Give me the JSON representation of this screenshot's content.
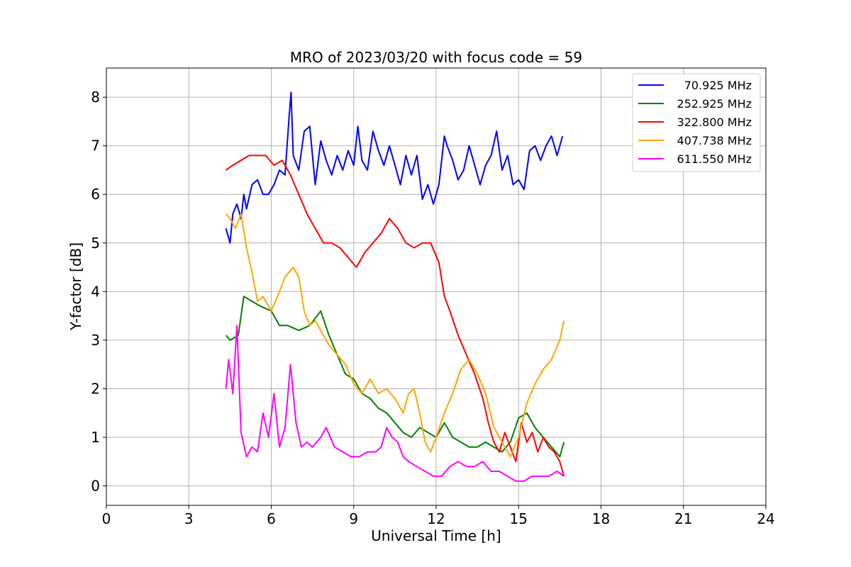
{
  "chart_data": {
    "type": "line",
    "title": "MRO of 2023/03/20 with focus code = 59",
    "xlabel": "Universal Time [h]",
    "ylabel": "Y-factor [dB]",
    "xlim": [
      0,
      24
    ],
    "ylim": [
      -0.4,
      8.6
    ],
    "xticks": [
      0,
      3,
      6,
      9,
      12,
      15,
      18,
      21,
      24
    ],
    "yticks": [
      0,
      1,
      2,
      3,
      4,
      5,
      6,
      7,
      8
    ],
    "grid": true,
    "legend_position": "top-right",
    "series": [
      {
        "name": "70.925 MHz",
        "color": "#0000ff",
        "x": [
          4.35,
          4.5,
          4.6,
          4.75,
          4.9,
          5.0,
          5.1,
          5.3,
          5.5,
          5.7,
          5.9,
          6.1,
          6.3,
          6.5,
          6.65,
          6.72,
          6.8,
          7.0,
          7.2,
          7.4,
          7.6,
          7.8,
          8.0,
          8.2,
          8.4,
          8.6,
          8.8,
          9.0,
          9.15,
          9.3,
          9.5,
          9.7,
          9.9,
          10.1,
          10.3,
          10.5,
          10.7,
          10.9,
          11.1,
          11.3,
          11.5,
          11.7,
          11.9,
          12.1,
          12.3,
          12.4,
          12.6,
          12.8,
          13.0,
          13.2,
          13.4,
          13.6,
          13.8,
          14.0,
          14.2,
          14.4,
          14.6,
          14.8,
          15.0,
          15.2,
          15.4,
          15.6,
          15.8,
          16.0,
          16.2,
          16.4,
          16.6
        ],
        "y": [
          5.3,
          5.0,
          5.6,
          5.8,
          5.5,
          6.0,
          5.7,
          6.2,
          6.3,
          6.0,
          6.0,
          6.2,
          6.5,
          6.4,
          7.6,
          8.1,
          6.8,
          6.5,
          7.3,
          7.4,
          6.2,
          7.1,
          6.7,
          6.4,
          6.8,
          6.5,
          6.9,
          6.6,
          7.4,
          6.7,
          6.5,
          7.3,
          6.9,
          6.6,
          7.0,
          6.6,
          6.2,
          6.8,
          6.4,
          6.8,
          5.9,
          6.2,
          5.8,
          6.2,
          7.2,
          7.0,
          6.7,
          6.3,
          6.5,
          7.0,
          6.6,
          6.2,
          6.6,
          6.8,
          7.3,
          6.5,
          6.8,
          6.2,
          6.3,
          6.1,
          6.9,
          7.0,
          6.7,
          7.0,
          7.2,
          6.8,
          7.2
        ]
      },
      {
        "name": "252.925 MHz",
        "color": "#008000",
        "x": [
          4.35,
          4.5,
          4.8,
          5.0,
          5.3,
          5.6,
          6.0,
          6.3,
          6.6,
          7.0,
          7.4,
          7.8,
          8.1,
          8.4,
          8.7,
          9.0,
          9.3,
          9.6,
          9.9,
          10.2,
          10.5,
          10.8,
          11.1,
          11.4,
          11.7,
          12.0,
          12.3,
          12.6,
          12.9,
          13.2,
          13.5,
          13.8,
          14.1,
          14.4,
          14.7,
          15.0,
          15.3,
          15.6,
          15.9,
          16.2,
          16.5,
          16.65
        ],
        "y": [
          3.1,
          3.0,
          3.1,
          3.9,
          3.8,
          3.7,
          3.6,
          3.3,
          3.3,
          3.2,
          3.3,
          3.6,
          3.1,
          2.7,
          2.3,
          2.2,
          1.9,
          1.8,
          1.6,
          1.5,
          1.3,
          1.1,
          1.0,
          1.2,
          1.1,
          1.0,
          1.3,
          1.0,
          0.9,
          0.8,
          0.8,
          0.9,
          0.8,
          0.7,
          0.9,
          1.4,
          1.5,
          1.2,
          1.0,
          0.8,
          0.6,
          0.9
        ]
      },
      {
        "name": "322.800 MHz",
        "color": "#ff0000",
        "x": [
          4.35,
          4.6,
          4.9,
          5.2,
          5.5,
          5.8,
          6.1,
          6.4,
          6.7,
          7.0,
          7.3,
          7.6,
          7.9,
          8.2,
          8.5,
          8.8,
          9.1,
          9.4,
          9.7,
          10.0,
          10.3,
          10.6,
          10.9,
          11.2,
          11.5,
          11.8,
          12.1,
          12.3,
          12.5,
          12.8,
          13.1,
          13.4,
          13.7,
          13.9,
          14.1,
          14.3,
          14.5,
          14.7,
          14.9,
          15.1,
          15.3,
          15.5,
          15.7,
          15.9,
          16.1,
          16.3,
          16.5,
          16.65
        ],
        "y": [
          6.5,
          6.6,
          6.7,
          6.8,
          6.8,
          6.8,
          6.6,
          6.7,
          6.4,
          6.0,
          5.6,
          5.3,
          5.0,
          5.0,
          4.9,
          4.7,
          4.5,
          4.8,
          5.0,
          5.2,
          5.5,
          5.3,
          5.0,
          4.9,
          5.0,
          5.0,
          4.6,
          3.9,
          3.6,
          3.1,
          2.7,
          2.3,
          1.8,
          1.3,
          0.9,
          0.7,
          1.1,
          0.8,
          0.5,
          1.3,
          0.9,
          1.1,
          0.7,
          1.0,
          0.8,
          0.7,
          0.5,
          0.2
        ]
      },
      {
        "name": "407.738 MHz",
        "color": "#ffa500",
        "x": [
          4.35,
          4.5,
          4.7,
          4.9,
          5.1,
          5.3,
          5.5,
          5.7,
          6.0,
          6.3,
          6.5,
          6.8,
          7.0,
          7.2,
          7.4,
          7.6,
          7.8,
          8.1,
          8.4,
          8.7,
          9.0,
          9.3,
          9.6,
          9.9,
          10.2,
          10.5,
          10.8,
          11.0,
          11.2,
          11.4,
          11.6,
          11.8,
          12.0,
          12.3,
          12.6,
          12.9,
          13.2,
          13.5,
          13.8,
          14.1,
          14.4,
          14.7,
          15.0,
          15.3,
          15.6,
          15.9,
          16.2,
          16.5,
          16.65
        ],
        "y": [
          5.6,
          5.5,
          5.3,
          5.6,
          4.9,
          4.4,
          3.8,
          3.9,
          3.6,
          4.0,
          4.3,
          4.5,
          4.3,
          3.6,
          3.3,
          3.4,
          3.2,
          2.9,
          2.7,
          2.5,
          2.1,
          1.9,
          2.2,
          1.9,
          2.0,
          1.8,
          1.5,
          1.9,
          2.0,
          1.5,
          0.9,
          0.7,
          1.0,
          1.5,
          1.9,
          2.4,
          2.6,
          2.3,
          1.9,
          1.2,
          0.9,
          0.6,
          1.0,
          1.7,
          2.1,
          2.4,
          2.6,
          3.0,
          3.4
        ]
      },
      {
        "name": "611.550 MHz",
        "color": "#ff00ff",
        "x": [
          4.35,
          4.45,
          4.6,
          4.75,
          4.9,
          5.1,
          5.3,
          5.5,
          5.7,
          5.9,
          6.1,
          6.3,
          6.5,
          6.7,
          6.9,
          7.1,
          7.3,
          7.5,
          7.8,
          8.0,
          8.3,
          8.6,
          8.9,
          9.2,
          9.5,
          9.8,
          10.0,
          10.2,
          10.4,
          10.6,
          10.8,
          11.0,
          11.3,
          11.6,
          11.9,
          12.2,
          12.5,
          12.8,
          13.1,
          13.4,
          13.7,
          14.0,
          14.3,
          14.6,
          14.9,
          15.2,
          15.5,
          15.8,
          16.1,
          16.4,
          16.65
        ],
        "y": [
          2.0,
          2.6,
          1.9,
          3.3,
          1.1,
          0.6,
          0.8,
          0.7,
          1.5,
          1.0,
          1.9,
          0.8,
          1.2,
          2.5,
          1.3,
          0.8,
          0.9,
          0.8,
          1.0,
          1.2,
          0.8,
          0.7,
          0.6,
          0.6,
          0.7,
          0.7,
          0.8,
          1.2,
          1.0,
          0.9,
          0.6,
          0.5,
          0.4,
          0.3,
          0.2,
          0.2,
          0.4,
          0.5,
          0.4,
          0.4,
          0.5,
          0.3,
          0.3,
          0.2,
          0.1,
          0.1,
          0.2,
          0.2,
          0.2,
          0.3,
          0.2
        ]
      }
    ]
  }
}
